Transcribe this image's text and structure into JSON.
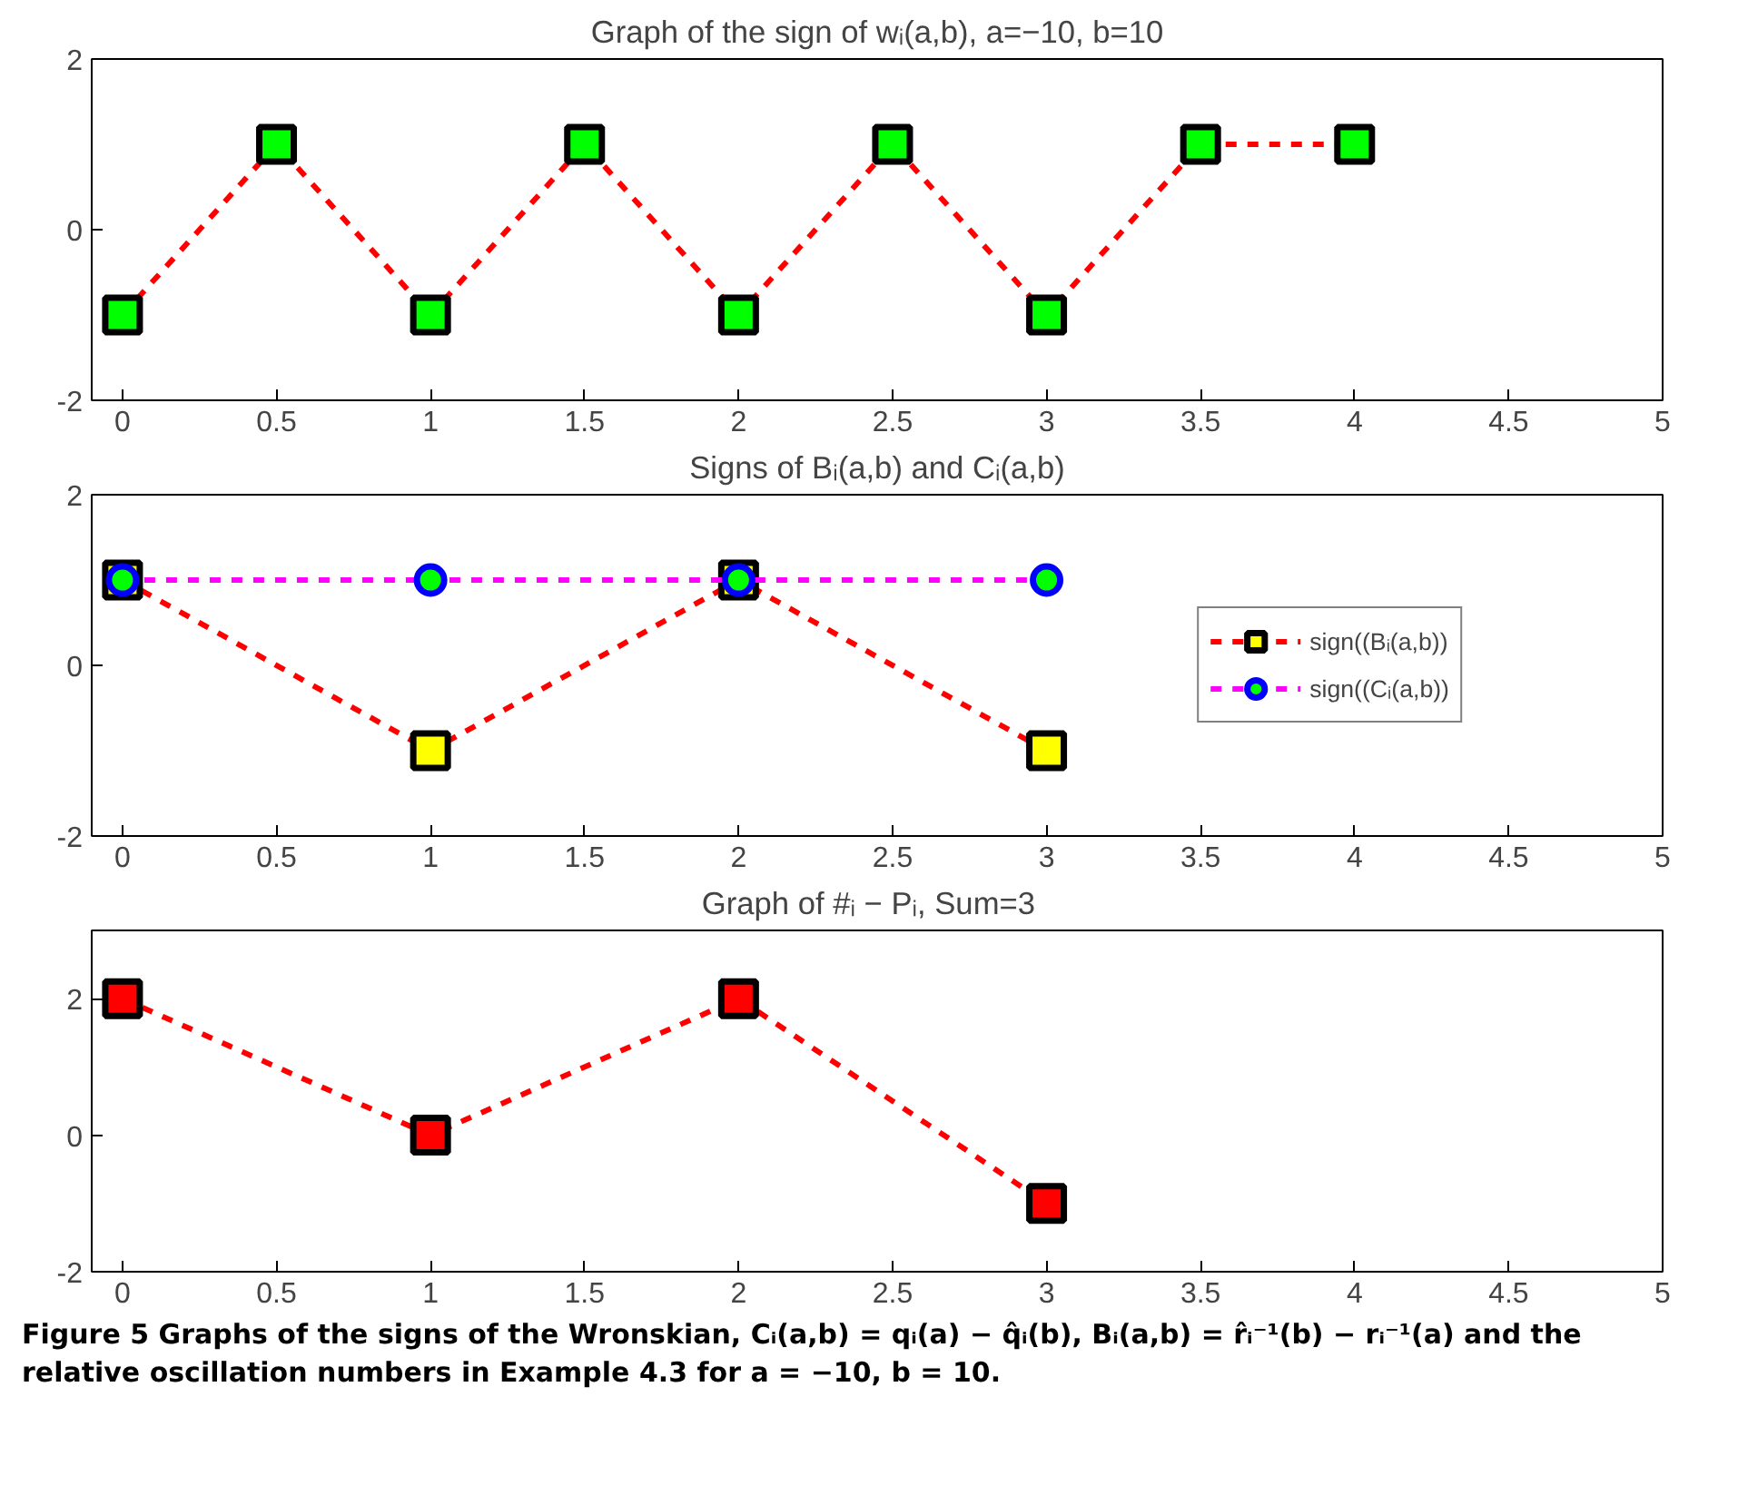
{
  "chart_data": [
    {
      "type": "line",
      "title": "Graph of the sign of wᵢ(a,b), a=−10, b=10",
      "x": [
        0,
        0.5,
        1,
        1.5,
        2,
        2.5,
        3,
        3.5,
        4
      ],
      "xlim": [
        -0.1,
        5
      ],
      "xticks": [
        0,
        0.5,
        1,
        1.5,
        2,
        2.5,
        3,
        3.5,
        4,
        4.5,
        5
      ],
      "ylim": [
        -2,
        2
      ],
      "yticks": [
        -2,
        0,
        2
      ],
      "grid": false,
      "legend": false,
      "marker": "square",
      "line_style": "dashed",
      "series": [
        {
          "color": "#ff0000",
          "colors": [
            "#00ff00",
            "#00ff00",
            "#00ff00",
            "#00ff00",
            "#00ff00",
            "#00ff00",
            "#00ff00",
            "#00ff00",
            "#00ff00"
          ],
          "values": [
            -1,
            1,
            -1,
            1,
            -1,
            1,
            -1,
            1,
            1
          ]
        }
      ]
    },
    {
      "type": "line",
      "title": "Signs of Bᵢ(a,b) and Cᵢ(a,b)",
      "x": [
        0,
        1,
        2,
        3
      ],
      "xlim": [
        -0.1,
        5
      ],
      "xticks": [
        0,
        0.5,
        1,
        1.5,
        2,
        2.5,
        3,
        3.5,
        4,
        4.5,
        5
      ],
      "ylim": [
        -2,
        2
      ],
      "yticks": [
        -2,
        0,
        2
      ],
      "grid": false,
      "legend": "right",
      "line_style": "dashed",
      "series": [
        {
          "name": "sign((Bᵢ(a,b))",
          "color": "#ff0000",
          "marker": "square",
          "colors": [
            "#ffff00",
            "#ffff00",
            "#ffff00",
            "#ffff00"
          ],
          "values": [
            1,
            -1,
            1,
            -1
          ]
        },
        {
          "name": "sign((Cᵢ(a,b))",
          "color": "#ff00ff",
          "marker": "circle",
          "colors": [
            "#00ff00",
            "#00ff00",
            "#00ff00",
            "#00ff00"
          ],
          "values": [
            1,
            1,
            1,
            1
          ]
        }
      ]
    },
    {
      "type": "line",
      "title": "Graph of #ᵢ  −  Pᵢ, Sum=3",
      "x": [
        0,
        1,
        2,
        3
      ],
      "xlim": [
        -0.1,
        5
      ],
      "xticks": [
        0,
        0.5,
        1,
        1.5,
        2,
        2.5,
        3,
        3.5,
        4,
        4.5,
        5
      ],
      "ylim": [
        -2,
        3
      ],
      "yticks": [
        -2,
        0,
        2
      ],
      "grid": false,
      "legend": false,
      "marker": "square",
      "line_style": "dashed",
      "series": [
        {
          "color": "#ff0000",
          "colors": [
            "#ff0000",
            "#ff0000",
            "#ff0000",
            "#ff0000"
          ],
          "values": [
            2,
            0,
            2,
            -1
          ]
        }
      ],
      "annotations": [
        "Figure 5  Graphs of the signs of the Wronskian, Cᵢ(a,b) = qᵢ(a) − q̂ᵢ(b), Bᵢ(a,b) = r̂ᵢ⁻¹(b) − rᵢ⁻¹(a) and the relative oscillation numbers in Example 4.3 for a = −10, b = 10."
      ]
    }
  ]
}
